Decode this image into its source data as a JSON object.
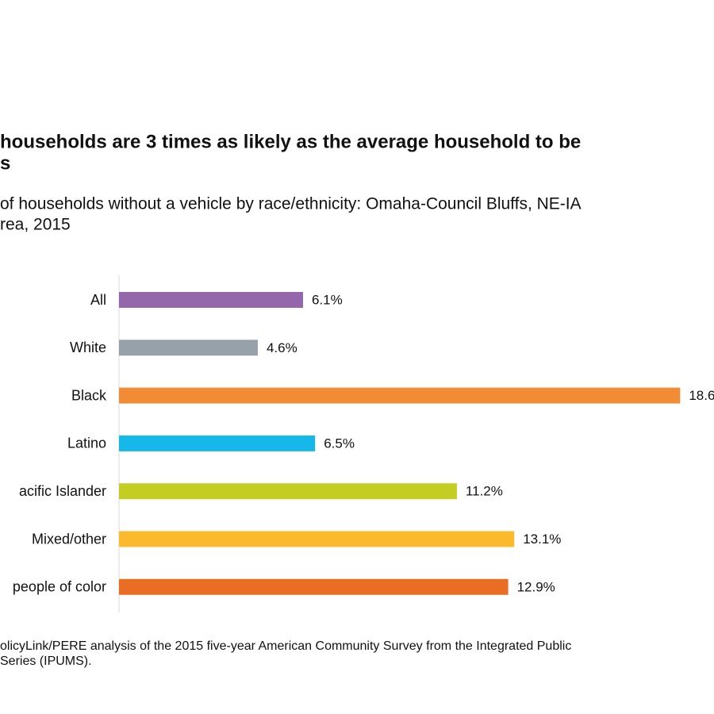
{
  "chart_data": {
    "type": "bar",
    "orientation": "horizontal",
    "title": [
      "households are 3 times as likely as the average household to be",
      "s"
    ],
    "subtitle": [
      "of households without a vehicle by race/ethnicity: Omaha-Council Bluffs, NE-IA",
      "rea, 2015"
    ],
    "categories": [
      "All",
      "White",
      "Black",
      "Latino",
      "acific Islander",
      "Mixed/other",
      "people of color"
    ],
    "values": [
      6.1,
      4.6,
      18.6,
      6.5,
      11.2,
      13.1,
      12.9
    ],
    "value_labels": [
      "6.1%",
      "4.6%",
      "18.6",
      "6.5%",
      "11.2%",
      "13.1%",
      "12.9%"
    ],
    "colors": [
      "#9467ac",
      "#97a1a9",
      "#f28b36",
      "#16b8e9",
      "#c3cd22",
      "#fbba2e",
      "#ea6d24"
    ],
    "source": [
      "olicyLink/PERE analysis of the 2015 five-year American Community Survey from the Integrated Public",
      "Series (IPUMS)."
    ]
  }
}
